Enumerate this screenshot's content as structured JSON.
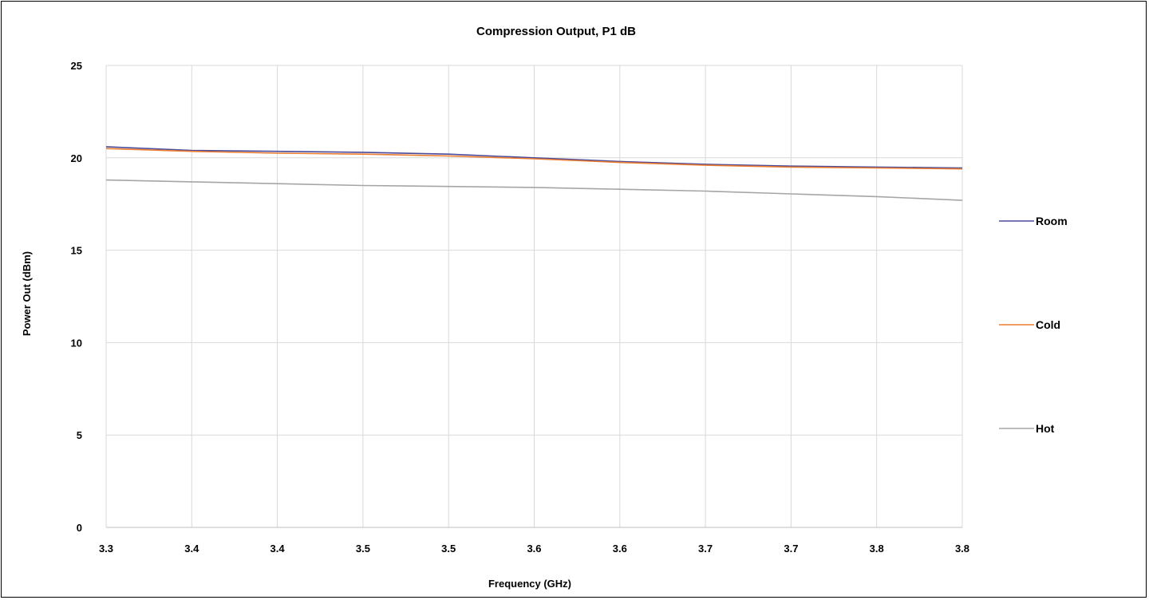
{
  "chart_data": {
    "type": "line",
    "title": "Compression Output,  P1 dB",
    "xlabel": "Frequency (GHz)",
    "ylabel": "Power Out (dBm)",
    "x_tick_labels": [
      "3.3",
      "3.4",
      "3.4",
      "3.5",
      "3.5",
      "3.6",
      "3.6",
      "3.7",
      "3.7",
      "3.8",
      "3.8"
    ],
    "y_ticks": [
      0,
      5,
      10,
      15,
      20,
      25
    ],
    "ylim": [
      0,
      25
    ],
    "grid": true,
    "legend_position": "right",
    "series": [
      {
        "name": "Room",
        "color": "#4a4a9a",
        "values": [
          20.6,
          20.4,
          20.35,
          20.3,
          20.2,
          20.0,
          19.8,
          19.65,
          19.55,
          19.5,
          19.45
        ]
      },
      {
        "name": "Cold",
        "color": "#ed7d31",
        "values": [
          20.5,
          20.35,
          20.25,
          20.2,
          20.1,
          19.95,
          19.75,
          19.6,
          19.5,
          19.45,
          19.4
        ]
      },
      {
        "name": "Hot",
        "color": "#a5a5a5",
        "values": [
          18.8,
          18.7,
          18.6,
          18.5,
          18.45,
          18.4,
          18.3,
          18.2,
          18.05,
          17.9,
          17.7
        ]
      }
    ]
  }
}
